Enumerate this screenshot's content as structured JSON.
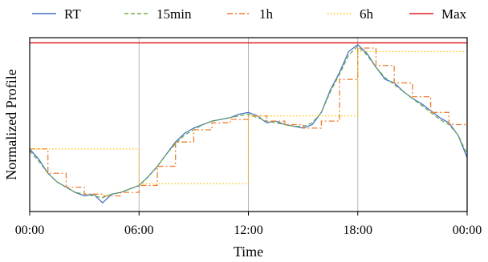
{
  "chart_data": {
    "type": "line",
    "title": "",
    "xlabel": "Time",
    "ylabel": "Normalized Profile",
    "x_unit": "hour of day",
    "x_range": [
      0,
      24
    ],
    "x_ticks": [
      0,
      6,
      12,
      18,
      24
    ],
    "x_tick_labels": [
      "00:00",
      "06:00",
      "12:00",
      "18:00",
      "00:00"
    ],
    "y_ticks_shown": false,
    "y_range": [
      0,
      1.0
    ],
    "vertical_grid": true,
    "grid_color": "#b8b8b8",
    "legend_position": "top",
    "series": [
      {
        "name": "RT",
        "color": "#4472c4",
        "style": "solid",
        "x": [
          0,
          0.5,
          1,
          1.5,
          2,
          2.5,
          3,
          3.5,
          4,
          4.5,
          5,
          5.5,
          6,
          6.5,
          7,
          7.5,
          8,
          8.5,
          9,
          9.5,
          10,
          10.5,
          11,
          11.5,
          12,
          12.5,
          13,
          13.5,
          14,
          14.5,
          15,
          15.5,
          16,
          16.5,
          17,
          17.5,
          18,
          18.5,
          19,
          19.5,
          20,
          20.5,
          21,
          21.5,
          22,
          22.5,
          23,
          23.5,
          24
        ],
        "values": [
          0.36,
          0.3,
          0.22,
          0.17,
          0.14,
          0.11,
          0.09,
          0.1,
          0.05,
          0.1,
          0.11,
          0.13,
          0.15,
          0.2,
          0.26,
          0.33,
          0.4,
          0.45,
          0.48,
          0.5,
          0.52,
          0.53,
          0.54,
          0.56,
          0.57,
          0.55,
          0.51,
          0.52,
          0.5,
          0.49,
          0.48,
          0.5,
          0.57,
          0.7,
          0.8,
          0.92,
          0.96,
          0.91,
          0.83,
          0.76,
          0.74,
          0.69,
          0.65,
          0.62,
          0.58,
          0.54,
          0.51,
          0.44,
          0.31
        ]
      },
      {
        "name": "15min",
        "color": "#70ad47",
        "style": "dashed",
        "x": [
          0,
          0.5,
          1,
          1.5,
          2,
          2.5,
          3,
          3.5,
          4,
          4.5,
          5,
          5.5,
          6,
          6.5,
          7,
          7.5,
          8,
          8.5,
          9,
          9.5,
          10,
          10.5,
          11,
          11.5,
          12,
          12.5,
          13,
          13.5,
          14,
          14.5,
          15,
          15.5,
          16,
          16.5,
          17,
          17.5,
          18,
          18.5,
          19,
          19.5,
          20,
          20.5,
          21,
          21.5,
          22,
          22.5,
          23,
          23.5,
          24
        ],
        "values": [
          0.35,
          0.29,
          0.22,
          0.17,
          0.14,
          0.11,
          0.1,
          0.09,
          0.08,
          0.1,
          0.11,
          0.13,
          0.15,
          0.2,
          0.26,
          0.33,
          0.39,
          0.44,
          0.47,
          0.5,
          0.52,
          0.53,
          0.54,
          0.55,
          0.56,
          0.54,
          0.52,
          0.51,
          0.5,
          0.49,
          0.49,
          0.51,
          0.57,
          0.69,
          0.79,
          0.9,
          0.95,
          0.9,
          0.83,
          0.77,
          0.73,
          0.69,
          0.65,
          0.61,
          0.57,
          0.53,
          0.5,
          0.44,
          0.33
        ]
      },
      {
        "name": "1h",
        "color": "#ed7d31",
        "style": "dashdot",
        "x": [
          0,
          1,
          2,
          3,
          4,
          5,
          6,
          7,
          8,
          9,
          10,
          11,
          12,
          13,
          14,
          15,
          16,
          17,
          18,
          19,
          20,
          21,
          22,
          23,
          24
        ],
        "values": [
          0.36,
          0.22,
          0.14,
          0.1,
          0.09,
          0.11,
          0.15,
          0.26,
          0.4,
          0.47,
          0.51,
          0.53,
          0.55,
          0.52,
          0.5,
          0.48,
          0.52,
          0.76,
          0.94,
          0.84,
          0.74,
          0.66,
          0.57,
          0.5,
          0.5
        ]
      },
      {
        "name": "6h",
        "color": "#ffc000",
        "style": "dotted",
        "x": [
          0,
          6,
          12,
          18,
          24
        ],
        "values": [
          0.36,
          0.16,
          0.55,
          0.92,
          0.92
        ]
      },
      {
        "name": "Max",
        "color": "#e02020",
        "style": "solid",
        "x": [
          0,
          24
        ],
        "values": [
          0.97,
          0.97
        ]
      }
    ]
  }
}
